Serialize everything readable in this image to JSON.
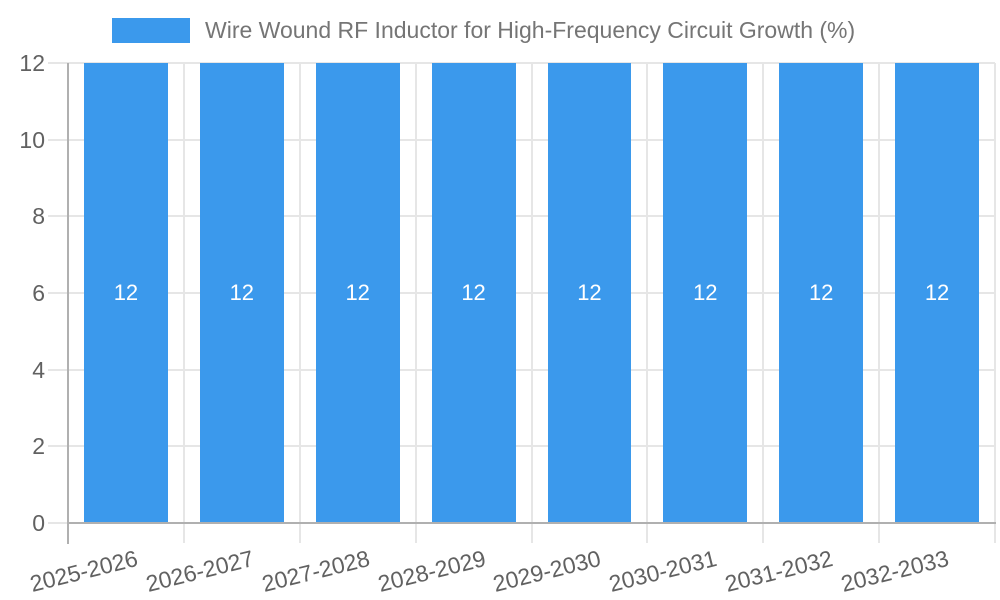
{
  "chart_data": {
    "type": "bar",
    "title": "Wire Wound RF Inductor for High-Frequency Circuit Growth (%)",
    "legend": {
      "position": "top",
      "entries": [
        "Wire Wound RF Inductor for High-Frequency Circuit Growth (%)"
      ]
    },
    "categories": [
      "2025-2026",
      "2026-2027",
      "2027-2028",
      "2028-2029",
      "2029-2030",
      "2030-2031",
      "2031-2032",
      "2032-2033"
    ],
    "values": [
      12,
      12,
      12,
      12,
      12,
      12,
      12,
      12
    ],
    "bar_value_labels": [
      "12",
      "12",
      "12",
      "12",
      "12",
      "12",
      "12",
      "12"
    ],
    "xlabel": "",
    "ylabel": "",
    "ylim": [
      0,
      12
    ],
    "yticks": [
      0,
      2,
      4,
      6,
      8,
      10,
      12
    ],
    "grid": true,
    "x_label_rotation_deg": -14,
    "colors": {
      "bar": "#3b99ec",
      "bar_value_label": "#ffffff",
      "gridline": "#e6e6e6",
      "axis_line": "#b0b0b0",
      "tick_label": "#616161",
      "title_text": "#757575",
      "background": "#ffffff"
    }
  }
}
